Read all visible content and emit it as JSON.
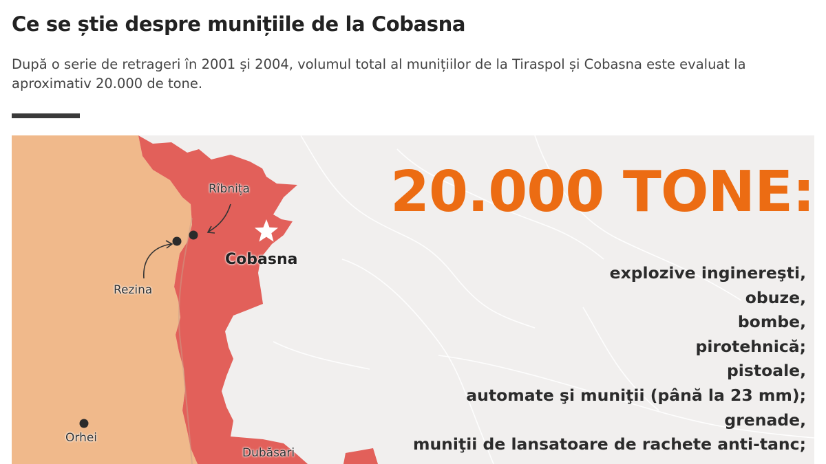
{
  "header": {
    "title": "Ce se știe despre munițiile de la Cobasna",
    "subtitle": "După o serie de retrageri în 2001 și 2004, volumul total al munițiilor de la Tiraspol și Cobasna este evaluat la aproximativ 20.000 de tone."
  },
  "map": {
    "places": {
      "ribnita": "Rîbnița",
      "rezina": "Rezina",
      "cobasna": "Cobasna",
      "orhei": "Orhei",
      "dubasari": "Dubăsari"
    },
    "headline": "20.000 TONE:",
    "items": [
      "explozive inginereşti,",
      "obuze,",
      "bombe,",
      "pirotehnică;",
      "pistoale,",
      "automate şi muniţii (până la 23 mm);",
      "grenade,",
      "muniţii de lansatoare de rachete anti-tanc;"
    ]
  },
  "colors": {
    "moldova": "#f0b98b",
    "transnistria": "#e2605a",
    "background": "#f1efee",
    "headline": "#ec6c13"
  }
}
